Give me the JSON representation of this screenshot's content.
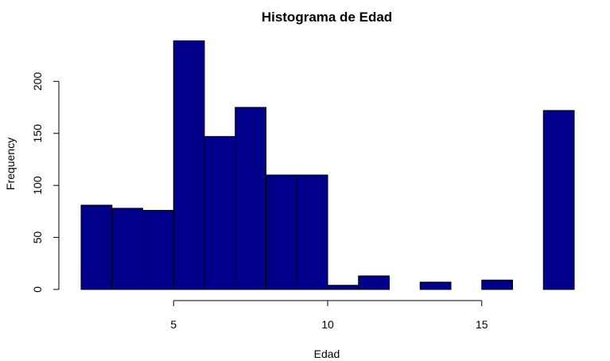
{
  "chart_data": {
    "type": "bar",
    "title": "Histograma de Edad",
    "xlabel": "Edad",
    "ylabel": "Frequency",
    "x_ticks": [
      5,
      10,
      15
    ],
    "y_ticks": [
      0,
      50,
      100,
      150,
      200
    ],
    "xlim": [
      1.5,
      18.5
    ],
    "ylim": [
      0,
      240
    ],
    "bins": [
      {
        "start": 2,
        "end": 3,
        "value": 81
      },
      {
        "start": 3,
        "end": 4,
        "value": 78
      },
      {
        "start": 4,
        "end": 5,
        "value": 76
      },
      {
        "start": 5,
        "end": 6,
        "value": 239
      },
      {
        "start": 6,
        "end": 7,
        "value": 147
      },
      {
        "start": 7,
        "end": 8,
        "value": 175
      },
      {
        "start": 8,
        "end": 9,
        "value": 110
      },
      {
        "start": 9,
        "end": 10,
        "value": 110
      },
      {
        "start": 10,
        "end": 11,
        "value": 4
      },
      {
        "start": 11,
        "end": 12,
        "value": 13
      },
      {
        "start": 12,
        "end": 13,
        "value": 0
      },
      {
        "start": 13,
        "end": 14,
        "value": 7
      },
      {
        "start": 14,
        "end": 15,
        "value": 0
      },
      {
        "start": 15,
        "end": 16,
        "value": 9
      },
      {
        "start": 16,
        "end": 17,
        "value": 0
      },
      {
        "start": 17,
        "end": 18,
        "value": 172
      }
    ],
    "bar_color": "#00008b",
    "edge_color": "#000000",
    "grid": false,
    "legend": "none"
  }
}
